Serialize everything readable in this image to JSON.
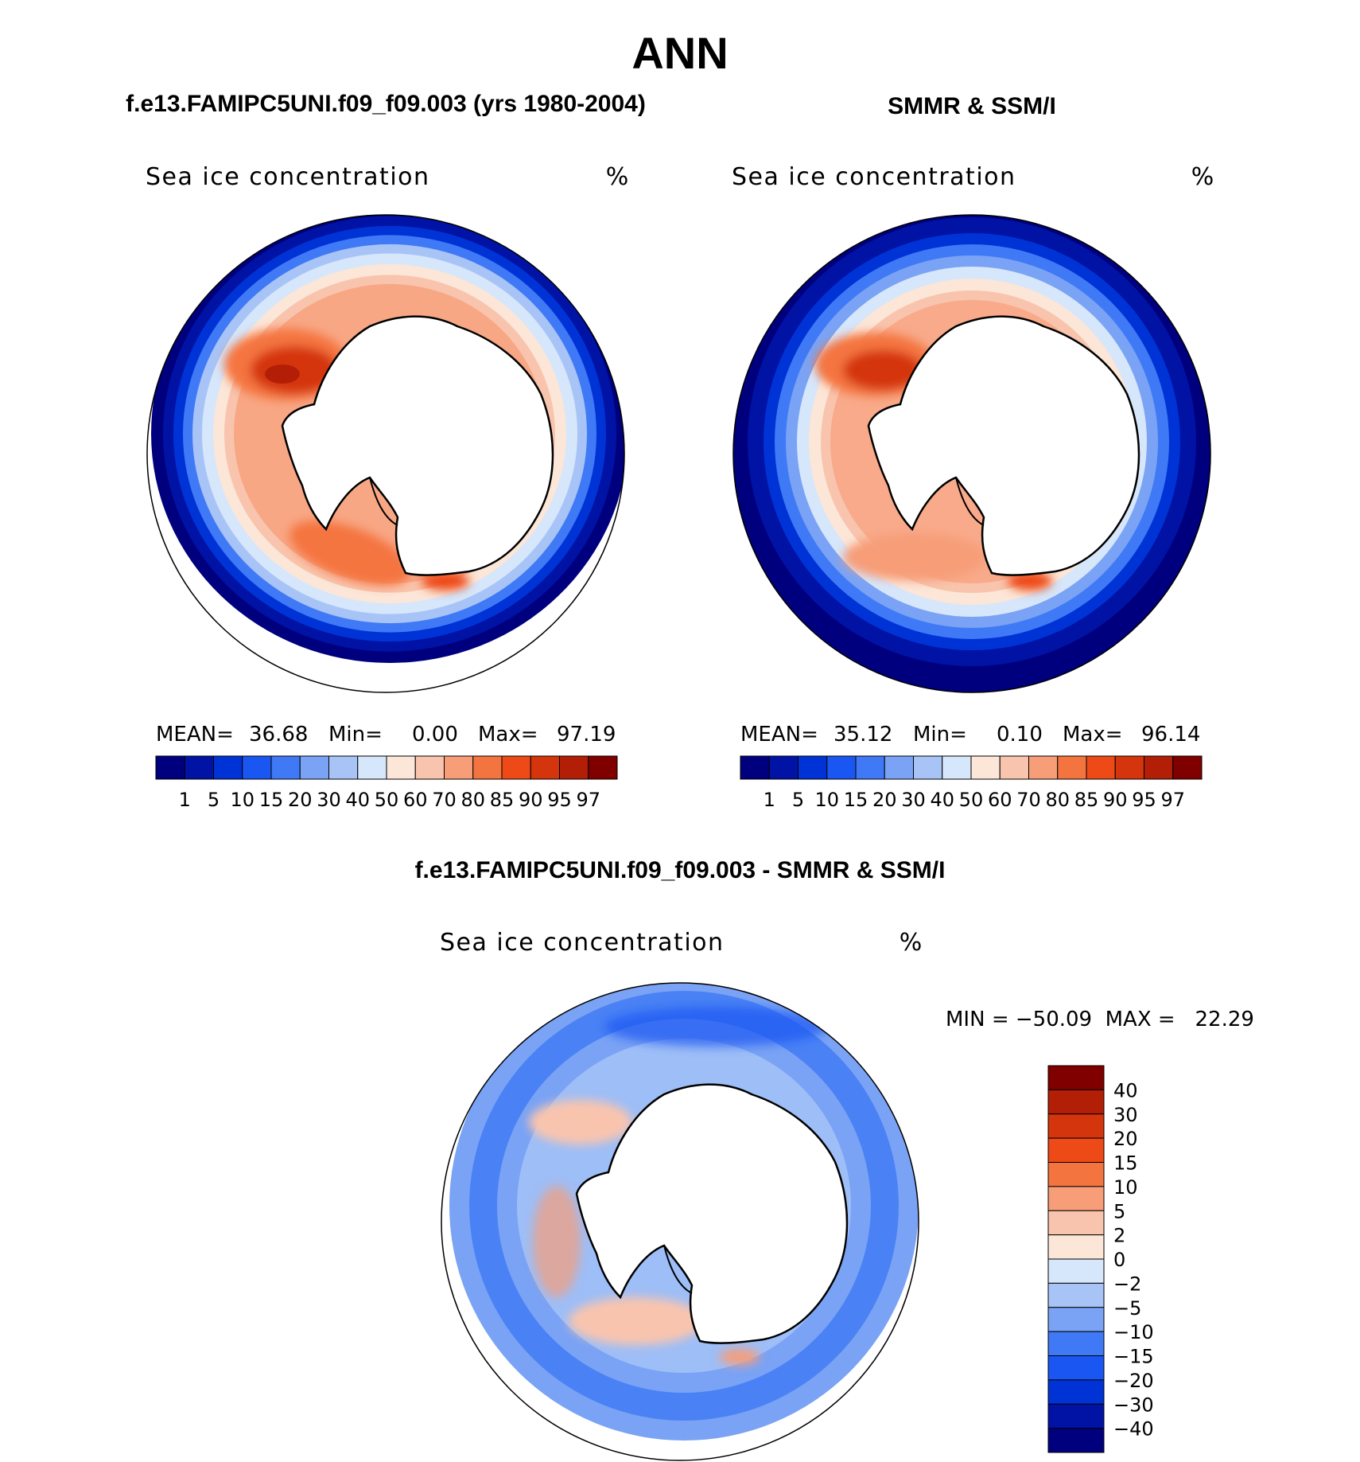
{
  "figure": {
    "season": "ANN",
    "panel_top_left_title": "f.e13.FAMIPC5UNI.f09_f09.003 (yrs 1980-2004)",
    "panel_top_right_title": "SMMR & SSM/I",
    "panel_bottom_title": "f.e13.FAMIPC5UNI.f09_f09.003 - SMMR & SSM/I"
  },
  "panels": {
    "model": {
      "variable": "Sea ice concentration",
      "units": "%",
      "stats": {
        "mean_label": "MEAN=",
        "mean": "36.68",
        "min_label": "Min=",
        "min": "0.00",
        "max_label": "Max=",
        "max": "97.19"
      }
    },
    "obs": {
      "variable": "Sea ice concentration",
      "units": "%",
      "stats": {
        "mean_label": "MEAN=",
        "mean": "35.12",
        "min_label": "Min=",
        "min": "0.10",
        "max_label": "Max=",
        "max": "96.14"
      }
    },
    "diff": {
      "variable": "Sea ice concentration",
      "units": "%",
      "minmax_text": "MIN = −50.09  MAX =   22.29"
    }
  },
  "colorbars": {
    "abs_levels": [
      "1",
      "5",
      "10",
      "15",
      "20",
      "30",
      "40",
      "50",
      "60",
      "70",
      "80",
      "85",
      "90",
      "95",
      "97"
    ],
    "abs_colors": [
      "#00007f",
      "#0013a5",
      "#0033d6",
      "#1a57f2",
      "#3f79f5",
      "#7aa3f5",
      "#a8c4f7",
      "#d6e6fb",
      "#fbe6d8",
      "#f9c4ad",
      "#f79d78",
      "#f4743f",
      "#ee4a18",
      "#d4350d",
      "#b31f06",
      "#800000"
    ],
    "diff_levels": [
      "40",
      "30",
      "20",
      "15",
      "10",
      "5",
      "2",
      "0",
      "−2",
      "−5",
      "−10",
      "−15",
      "−20",
      "−30",
      "−40"
    ],
    "diff_colors": [
      "#800000",
      "#b31f06",
      "#d4350d",
      "#ee4a18",
      "#f4743f",
      "#f79d78",
      "#f9c4ad",
      "#fbe6d8",
      "#d6e6fb",
      "#a8c4f7",
      "#7aa3f5",
      "#3f79f5",
      "#1a57f2",
      "#0033d6",
      "#0013a5",
      "#00007f"
    ]
  }
}
